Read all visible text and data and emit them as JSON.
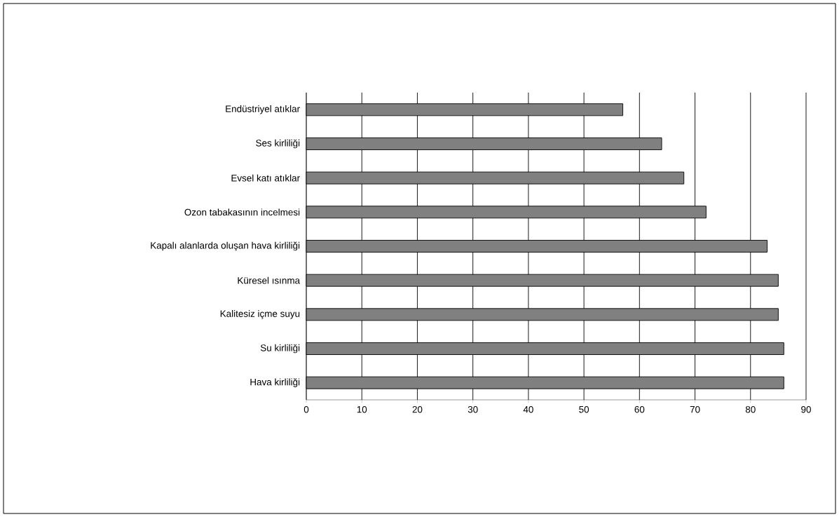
{
  "chart_data": {
    "type": "bar",
    "orientation": "horizontal",
    "categories": [
      "Endüstriyel atıklar",
      "Ses kirliliği",
      "Evsel katı atıklar",
      "Ozon tabakasının incelmesi",
      "Kapalı alanlarda oluşan hava kirliliği",
      "Küresel ısınma",
      "Kalitesiz içme suyu",
      "Su kirliliği",
      "Hava kirliliği"
    ],
    "values": [
      57,
      64,
      68,
      72,
      83,
      85,
      85,
      86,
      86
    ],
    "color": "#808080",
    "xlim": [
      0,
      90
    ],
    "xticks": [
      0,
      10,
      20,
      30,
      40,
      50,
      60,
      70,
      80,
      90
    ],
    "grid": "x"
  }
}
